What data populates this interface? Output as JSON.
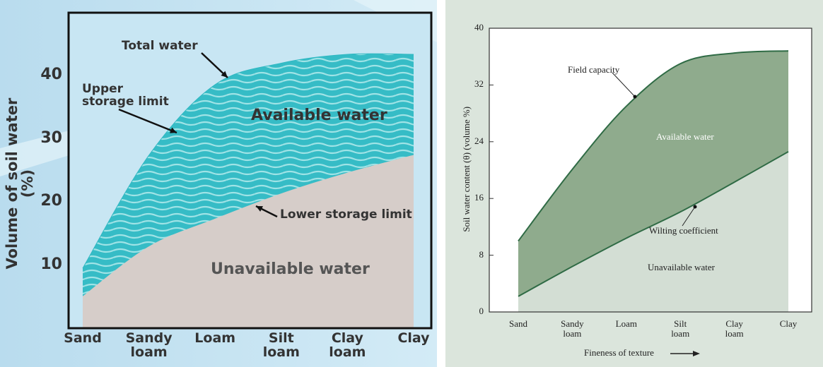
{
  "chart_data": [
    {
      "type": "area",
      "y_label": "Volume of soil water (%)",
      "categories": [
        "Sand",
        "Sandy loam",
        "Loam",
        "Silt loam",
        "Clay loam",
        "Clay"
      ],
      "series": [
        {
          "name": "Upper storage limit",
          "color": "#2fb8c2",
          "fill": "#3fc0c8",
          "values": [
            9.5,
            27.4,
            38.6,
            42,
            43.4,
            43.4
          ]
        },
        {
          "name": "Lower storage limit",
          "color": "#d6cdc9",
          "fill": "#d6cdc9",
          "values": [
            5,
            12.9,
            17.3,
            21.3,
            24.6,
            27.4
          ]
        }
      ],
      "ylim": [
        0,
        50
      ],
      "yticks": [
        10,
        20,
        30,
        40
      ],
      "grid": false,
      "annotations": [
        "Total water",
        "Available water",
        "Unavailable water"
      ]
    },
    {
      "type": "area",
      "y_label": "Soil water content (θ) (volume %)",
      "x_label": "Fineness of texture",
      "categories": [
        "Sand",
        "Sandy loam",
        "Loam",
        "Silt loam",
        "Clay loam",
        "Clay"
      ],
      "series": [
        {
          "name": "Field capacity",
          "color": "#2f6b45",
          "fill": "#8fab8d",
          "values": [
            10,
            20.1,
            29,
            35,
            36.5,
            36.8
          ]
        },
        {
          "name": "Wilting coefficient",
          "color": "#2f6b45",
          "fill": "#d3ded4",
          "values": [
            2.2,
            6.4,
            10.4,
            14.1,
            18.3,
            22.6
          ]
        }
      ],
      "ylim": [
        0,
        40
      ],
      "yticks": [
        0,
        8,
        16,
        24,
        32,
        40
      ],
      "grid": false,
      "annotations": [
        "Available water",
        "Unavailable water"
      ]
    }
  ]
}
